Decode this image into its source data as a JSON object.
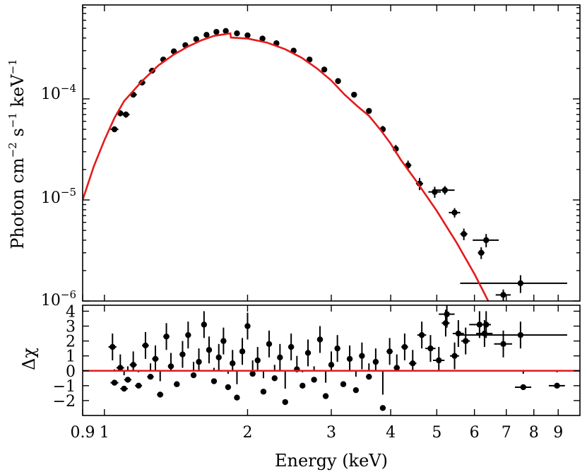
{
  "chart_data": [
    {
      "type": "scatter",
      "panel": "spectrum",
      "xscale": "log",
      "yscale": "log",
      "xlim": [
        0.9,
        10.0
      ],
      "ylim": [
        1e-06,
        0.00085
      ],
      "ylabel_parts": {
        "a": "Photon cm",
        "a_exp": "−2",
        "b": " s",
        "b_exp": "−1",
        "c": " keV",
        "c_exp": "−1"
      },
      "yticks": [
        {
          "value": 1e-06,
          "base": "10",
          "exp": "−6"
        },
        {
          "value": 1e-05,
          "base": "10",
          "exp": "−5"
        },
        {
          "value": 0.0001,
          "base": "10",
          "exp": "−4"
        }
      ],
      "data_series": {
        "name": "data",
        "color": "#000000",
        "points": [
          {
            "x": 1.05,
            "y": 5e-05,
            "xerr": 0.02,
            "yerr": 3e-06
          },
          {
            "x": 1.08,
            "y": 7.2e-05,
            "xerr": 0.02,
            "yerr": 5e-06
          },
          {
            "x": 1.11,
            "y": 7e-05,
            "xerr": 0.02,
            "yerr": 5e-06
          },
          {
            "x": 1.15,
            "y": 0.00011,
            "xerr": 0.02,
            "yerr": 6e-06
          },
          {
            "x": 1.2,
            "y": 0.000145,
            "xerr": 0.02,
            "yerr": 8e-06
          },
          {
            "x": 1.26,
            "y": 0.00019,
            "xerr": 0.02,
            "yerr": 1e-05
          },
          {
            "x": 1.33,
            "y": 0.000245,
            "xerr": 0.02,
            "yerr": 1.2e-05
          },
          {
            "x": 1.4,
            "y": 0.000295,
            "xerr": 0.02,
            "yerr": 1.4e-05
          },
          {
            "x": 1.48,
            "y": 0.00034,
            "xerr": 0.02,
            "yerr": 1.6e-05
          },
          {
            "x": 1.56,
            "y": 0.00039,
            "xerr": 0.02,
            "yerr": 1.8e-05
          },
          {
            "x": 1.64,
            "y": 0.00043,
            "xerr": 0.02,
            "yerr": 2e-05
          },
          {
            "x": 1.72,
            "y": 0.00046,
            "xerr": 0.02,
            "yerr": 2e-05
          },
          {
            "x": 1.8,
            "y": 0.00047,
            "xerr": 0.02,
            "yerr": 2e-05
          },
          {
            "x": 1.9,
            "y": 0.000445,
            "xerr": 0.02,
            "yerr": 2e-05
          },
          {
            "x": 2.0,
            "y": 0.000425,
            "xerr": 0.02,
            "yerr": 2e-05
          },
          {
            "x": 2.15,
            "y": 0.000395,
            "xerr": 0.03,
            "yerr": 2e-05
          },
          {
            "x": 2.3,
            "y": 0.000355,
            "xerr": 0.03,
            "yerr": 1.8e-05
          },
          {
            "x": 2.5,
            "y": 0.0003,
            "xerr": 0.03,
            "yerr": 1.5e-05
          },
          {
            "x": 2.7,
            "y": 0.000245,
            "xerr": 0.03,
            "yerr": 1.3e-05
          },
          {
            "x": 2.9,
            "y": 0.000195,
            "xerr": 0.03,
            "yerr": 1.1e-05
          },
          {
            "x": 3.1,
            "y": 0.00015,
            "xerr": 0.04,
            "yerr": 9e-06
          },
          {
            "x": 3.35,
            "y": 0.00011,
            "xerr": 0.04,
            "yerr": 7e-06
          },
          {
            "x": 3.6,
            "y": 7.6e-05,
            "xerr": 0.04,
            "yerr": 5e-06
          },
          {
            "x": 3.85,
            "y": 5e-05,
            "xerr": 0.05,
            "yerr": 4e-06
          },
          {
            "x": 4.1,
            "y": 3.2e-05,
            "xerr": 0.06,
            "yerr": 3e-06
          },
          {
            "x": 4.35,
            "y": 2.2e-05,
            "xerr": 0.07,
            "yerr": 2.5e-06
          },
          {
            "x": 4.6,
            "y": 1.45e-05,
            "xerr": 0.08,
            "yerr": 2e-06
          },
          {
            "x": 4.95,
            "y": 1.2e-05,
            "xerr": 0.15,
            "yerr": 1.5e-06
          },
          {
            "x": 5.2,
            "y": 1.25e-05,
            "xerr": 0.25,
            "yerr": 1.2e-06
          },
          {
            "x": 5.45,
            "y": 7.5e-06,
            "xerr": 0.15,
            "yerr": 8e-07
          },
          {
            "x": 5.7,
            "y": 4.6e-06,
            "xerr": 0.1,
            "yerr": 6e-07
          },
          {
            "x": 6.2,
            "y": 3e-06,
            "xerr": 0.1,
            "yerr": 4e-07
          },
          {
            "x": 6.35,
            "y": 4e-06,
            "xerr": 0.4,
            "yerr": 6e-07
          },
          {
            "x": 6.9,
            "y": 1.15e-06,
            "xerr": 0.25,
            "yerr": 1.5e-07
          },
          {
            "x": 7.5,
            "y": 1.5e-06,
            "xerr": 1.9,
            "yerr": 3e-07
          }
        ]
      },
      "model_series": {
        "name": "model",
        "color": "#e41a1c",
        "points": [
          {
            "x": 0.9,
            "y": 1e-05
          },
          {
            "x": 0.95,
            "y": 2.15e-05
          },
          {
            "x": 1.0,
            "y": 3.9e-05
          },
          {
            "x": 1.05,
            "y": 6.5e-05
          },
          {
            "x": 1.1,
            "y": 9.5e-05
          },
          {
            "x": 1.2,
            "y": 0.00015
          },
          {
            "x": 1.3,
            "y": 0.000215
          },
          {
            "x": 1.4,
            "y": 0.000275
          },
          {
            "x": 1.5,
            "y": 0.00033
          },
          {
            "x": 1.6,
            "y": 0.00038
          },
          {
            "x": 1.7,
            "y": 0.00042
          },
          {
            "x": 1.84,
            "y": 0.000445
          },
          {
            "x": 1.845,
            "y": 0.000405
          },
          {
            "x": 2.0,
            "y": 0.000395
          },
          {
            "x": 2.2,
            "y": 0.00036
          },
          {
            "x": 2.4,
            "y": 0.00031
          },
          {
            "x": 2.6,
            "y": 0.000255
          },
          {
            "x": 2.8,
            "y": 0.0002
          },
          {
            "x": 3.0,
            "y": 0.000152
          },
          {
            "x": 3.2,
            "y": 0.00011
          },
          {
            "x": 3.4,
            "y": 8.5e-05
          },
          {
            "x": 3.6,
            "y": 6.8e-05
          },
          {
            "x": 3.8,
            "y": 5e-05
          },
          {
            "x": 4.0,
            "y": 3.6e-05
          },
          {
            "x": 4.2,
            "y": 2.5e-05
          },
          {
            "x": 4.5,
            "y": 1.6e-05
          },
          {
            "x": 5.0,
            "y": 7.8e-06
          },
          {
            "x": 5.5,
            "y": 3.8e-06
          },
          {
            "x": 6.0,
            "y": 1.85e-06
          },
          {
            "x": 6.45,
            "y": 9.5e-07
          }
        ]
      }
    },
    {
      "type": "scatter",
      "panel": "residuals",
      "xscale": "log",
      "xlim": [
        0.9,
        10.0
      ],
      "ylim": [
        -3,
        4.4
      ],
      "xlabel": "Energy (keV)",
      "ylabel": "Δχ",
      "xticks": [
        {
          "value": 0.9,
          "label": "0.9"
        },
        {
          "value": 1,
          "label": "1"
        },
        {
          "value": 2,
          "label": "2"
        },
        {
          "value": 3,
          "label": "3"
        },
        {
          "value": 4,
          "label": "4"
        },
        {
          "value": 5,
          "label": "5"
        },
        {
          "value": 6,
          "label": "6"
        },
        {
          "value": 7,
          "label": "7"
        },
        {
          "value": 8,
          "label": "8"
        },
        {
          "value": 9,
          "label": "9"
        }
      ],
      "yticks": [
        {
          "value": -2,
          "label": "−2"
        },
        {
          "value": -1,
          "label": "−1"
        },
        {
          "value": 0,
          "label": "0"
        },
        {
          "value": 1,
          "label": "1"
        },
        {
          "value": 2,
          "label": "2"
        },
        {
          "value": 3,
          "label": "3"
        },
        {
          "value": 4,
          "label": "4"
        }
      ],
      "zero_line": {
        "value": 0,
        "color": "#e41a1c"
      },
      "data_series": {
        "name": "residuals",
        "color": "#000000",
        "points": [
          {
            "x": 1.04,
            "y": 1.6,
            "xerr": 0.02,
            "yerr": 0.9
          },
          {
            "x": 1.05,
            "y": -0.8,
            "xerr": 0.02,
            "yerr": 0.9
          },
          {
            "x": 1.08,
            "y": 0.2,
            "xerr": 0.02,
            "yerr": 0.9
          },
          {
            "x": 1.1,
            "y": -1.2,
            "xerr": 0.02,
            "yerr": 0.9
          },
          {
            "x": 1.12,
            "y": -0.6,
            "xerr": 0.02,
            "yerr": 0.9
          },
          {
            "x": 1.15,
            "y": 0.4,
            "xerr": 0.02,
            "yerr": 0.9
          },
          {
            "x": 1.18,
            "y": -1.0,
            "xerr": 0.02,
            "yerr": 0.9
          },
          {
            "x": 1.22,
            "y": 1.7,
            "xerr": 0.02,
            "yerr": 0.9
          },
          {
            "x": 1.25,
            "y": -0.4,
            "xerr": 0.02,
            "yerr": 0.9
          },
          {
            "x": 1.28,
            "y": 0.8,
            "xerr": 0.02,
            "yerr": 0.9
          },
          {
            "x": 1.31,
            "y": -1.6,
            "xerr": 0.02,
            "yerr": 0.9
          },
          {
            "x": 1.35,
            "y": 2.3,
            "xerr": 0.02,
            "yerr": 0.9
          },
          {
            "x": 1.38,
            "y": 0.3,
            "xerr": 0.02,
            "yerr": 0.9
          },
          {
            "x": 1.42,
            "y": -0.9,
            "xerr": 0.02,
            "yerr": 0.9
          },
          {
            "x": 1.46,
            "y": 1.1,
            "xerr": 0.02,
            "yerr": 0.9
          },
          {
            "x": 1.5,
            "y": 2.4,
            "xerr": 0.02,
            "yerr": 0.9
          },
          {
            "x": 1.54,
            "y": -0.3,
            "xerr": 0.02,
            "yerr": 0.9
          },
          {
            "x": 1.58,
            "y": 0.6,
            "xerr": 0.02,
            "yerr": 0.9
          },
          {
            "x": 1.62,
            "y": 3.1,
            "xerr": 0.02,
            "yerr": 0.9
          },
          {
            "x": 1.66,
            "y": 1.4,
            "xerr": 0.02,
            "yerr": 0.9
          },
          {
            "x": 1.7,
            "y": -0.7,
            "xerr": 0.02,
            "yerr": 0.9
          },
          {
            "x": 1.74,
            "y": 0.9,
            "xerr": 0.02,
            "yerr": 0.9
          },
          {
            "x": 1.78,
            "y": 2.0,
            "xerr": 0.02,
            "yerr": 0.9
          },
          {
            "x": 1.82,
            "y": -1.1,
            "xerr": 0.02,
            "yerr": 0.9
          },
          {
            "x": 1.86,
            "y": 0.5,
            "xerr": 0.02,
            "yerr": 0.9
          },
          {
            "x": 1.9,
            "y": -1.8,
            "xerr": 0.02,
            "yerr": 0.9
          },
          {
            "x": 1.95,
            "y": 1.3,
            "xerr": 0.02,
            "yerr": 0.9
          },
          {
            "x": 2.0,
            "y": 3.0,
            "xerr": 0.02,
            "yerr": 0.9
          },
          {
            "x": 2.05,
            "y": -0.2,
            "xerr": 0.02,
            "yerr": 0.9
          },
          {
            "x": 2.1,
            "y": 0.7,
            "xerr": 0.02,
            "yerr": 0.9
          },
          {
            "x": 2.16,
            "y": -1.4,
            "xerr": 0.03,
            "yerr": 0.9
          },
          {
            "x": 2.22,
            "y": 1.8,
            "xerr": 0.03,
            "yerr": 0.9
          },
          {
            "x": 2.28,
            "y": -0.5,
            "xerr": 0.03,
            "yerr": 0.9
          },
          {
            "x": 2.34,
            "y": 0.9,
            "xerr": 0.03,
            "yerr": 0.9
          },
          {
            "x": 2.4,
            "y": -2.1,
            "xerr": 0.03,
            "yerr": 0.9
          },
          {
            "x": 2.47,
            "y": 1.6,
            "xerr": 0.03,
            "yerr": 0.9
          },
          {
            "x": 2.54,
            "y": 0.1,
            "xerr": 0.03,
            "yerr": 0.9
          },
          {
            "x": 2.61,
            "y": -1.0,
            "xerr": 0.03,
            "yerr": 0.9
          },
          {
            "x": 2.68,
            "y": 1.2,
            "xerr": 0.03,
            "yerr": 0.9
          },
          {
            "x": 2.76,
            "y": -0.6,
            "xerr": 0.03,
            "yerr": 0.9
          },
          {
            "x": 2.84,
            "y": 2.1,
            "xerr": 0.03,
            "yerr": 0.9
          },
          {
            "x": 2.92,
            "y": -1.7,
            "xerr": 0.03,
            "yerr": 0.9
          },
          {
            "x": 3.0,
            "y": 0.4,
            "xerr": 0.04,
            "yerr": 0.9
          },
          {
            "x": 3.09,
            "y": 1.5,
            "xerr": 0.04,
            "yerr": 0.9
          },
          {
            "x": 3.18,
            "y": -0.9,
            "xerr": 0.04,
            "yerr": 0.9
          },
          {
            "x": 3.28,
            "y": 0.8,
            "xerr": 0.04,
            "yerr": 0.9
          },
          {
            "x": 3.38,
            "y": -1.3,
            "xerr": 0.04,
            "yerr": 0.9
          },
          {
            "x": 3.48,
            "y": 1.0,
            "xerr": 0.04,
            "yerr": 0.9
          },
          {
            "x": 3.6,
            "y": -0.4,
            "xerr": 0.05,
            "yerr": 0.9
          },
          {
            "x": 3.72,
            "y": 0.6,
            "xerr": 0.05,
            "yerr": 0.9
          },
          {
            "x": 3.85,
            "y": -2.5,
            "xerr": 0.05,
            "yerr": 0.9
          },
          {
            "x": 3.98,
            "y": 1.3,
            "xerr": 0.06,
            "yerr": 0.9
          },
          {
            "x": 4.12,
            "y": 0.2,
            "xerr": 0.06,
            "yerr": 0.9
          },
          {
            "x": 4.28,
            "y": 1.6,
            "xerr": 0.07,
            "yerr": 0.9
          },
          {
            "x": 4.45,
            "y": 0.5,
            "xerr": 0.08,
            "yerr": 0.9
          },
          {
            "x": 4.65,
            "y": 2.4,
            "xerr": 0.1,
            "yerr": 0.9
          },
          {
            "x": 4.85,
            "y": 1.5,
            "xerr": 0.12,
            "yerr": 0.9
          },
          {
            "x": 5.05,
            "y": 0.7,
            "xerr": 0.14,
            "yerr": 0.9
          },
          {
            "x": 5.25,
            "y": 3.8,
            "xerr": 0.2,
            "yerr": 0.9
          },
          {
            "x": 5.22,
            "y": 3.2,
            "xerr": 0.1,
            "yerr": 0.9
          },
          {
            "x": 5.45,
            "y": 1.0,
            "xerr": 0.12,
            "yerr": 0.9
          },
          {
            "x": 5.55,
            "y": 2.5,
            "xerr": 0.15,
            "yerr": 0.9
          },
          {
            "x": 5.75,
            "y": 2.0,
            "xerr": 0.12,
            "yerr": 0.9
          },
          {
            "x": 6.15,
            "y": 3.1,
            "xerr": 0.3,
            "yerr": 0.9
          },
          {
            "x": 6.3,
            "y": 2.5,
            "xerr": 0.25,
            "yerr": 0.9
          },
          {
            "x": 6.35,
            "y": 3.1,
            "xerr": 0.15,
            "yerr": 0.9
          },
          {
            "x": 6.9,
            "y": 1.8,
            "xerr": 0.3,
            "yerr": 0.9
          },
          {
            "x": 7.5,
            "y": 2.4,
            "xerr": 1.9,
            "yerr": 0.9
          },
          {
            "x": 7.6,
            "y": -1.1,
            "xerr": 0.3,
            "yerr": 0.9
          },
          {
            "x": 8.95,
            "y": -1.0,
            "xerr": 0.35,
            "yerr": 0.9
          }
        ]
      }
    }
  ]
}
